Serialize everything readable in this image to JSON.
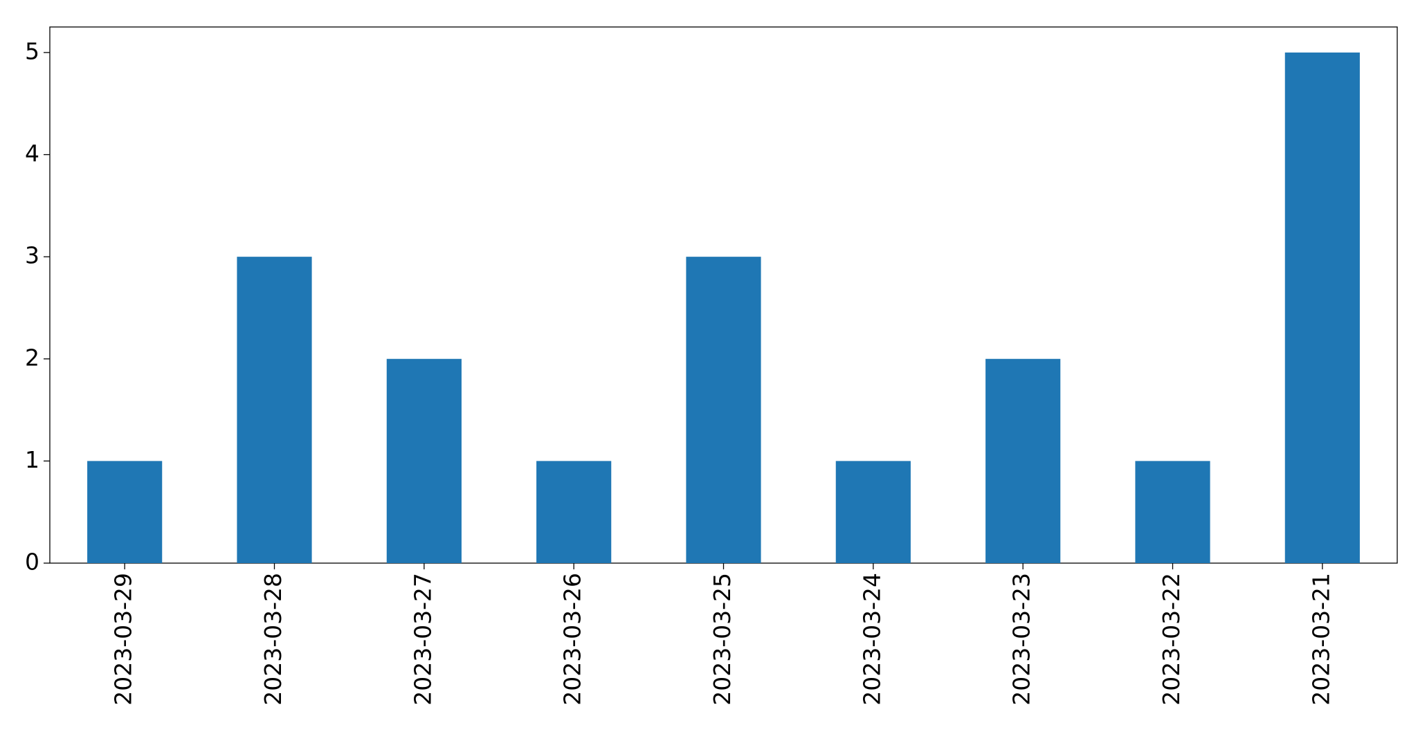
{
  "chart_data": {
    "type": "bar",
    "categories": [
      "2023-03-29",
      "2023-03-28",
      "2023-03-27",
      "2023-03-26",
      "2023-03-25",
      "2023-03-24",
      "2023-03-23",
      "2023-03-22",
      "2023-03-21"
    ],
    "values": [
      1,
      3,
      2,
      1,
      3,
      1,
      2,
      1,
      5
    ],
    "color": "#1f77b4",
    "ylim": [
      0,
      5.25
    ],
    "yticks": [
      0,
      1,
      2,
      3,
      4,
      5
    ],
    "grid": false
  }
}
